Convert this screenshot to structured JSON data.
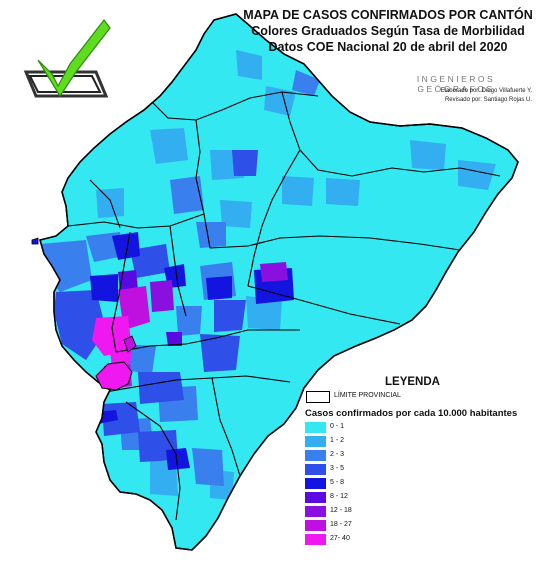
{
  "title": {
    "line1": "MAPA DE CASOS CONFIRMADOS POR CANTÓN",
    "line2": "Colores Graduados Según Tasa de Morbilidad",
    "line3": "Datos COE Nacional 20 de abril del 2020"
  },
  "branding": {
    "org": "INGENIEROS GEÓGRAFOS",
    "elaborated_by": "Elaborado por: Diego Villafuerte Y.",
    "reviewed_by": "Revisado por: Santiago Rojas U."
  },
  "legend": {
    "title": "LEYENDA",
    "boundary_label": "LÍMITE PROVINCIAL",
    "subtitle": "Casos confirmados por cada 10.000 habitantes",
    "classes": [
      {
        "label": "0 - 1",
        "color": "#33e8f0"
      },
      {
        "label": "1 - 2",
        "color": "#33aef0"
      },
      {
        "label": "2 - 3",
        "color": "#3a7fee"
      },
      {
        "label": "3 - 5",
        "color": "#2e4fe8"
      },
      {
        "label": "5 - 8",
        "color": "#1414e0"
      },
      {
        "label": "8 - 12",
        "color": "#5a0ae0"
      },
      {
        "label": "12 - 18",
        "color": "#8a10e0"
      },
      {
        "label": "18 - 27",
        "color": "#c010e0"
      },
      {
        "label": "27- 40",
        "color": "#f018f0"
      }
    ]
  },
  "icons": {
    "logo": "checkmark-checkbox-icon"
  }
}
